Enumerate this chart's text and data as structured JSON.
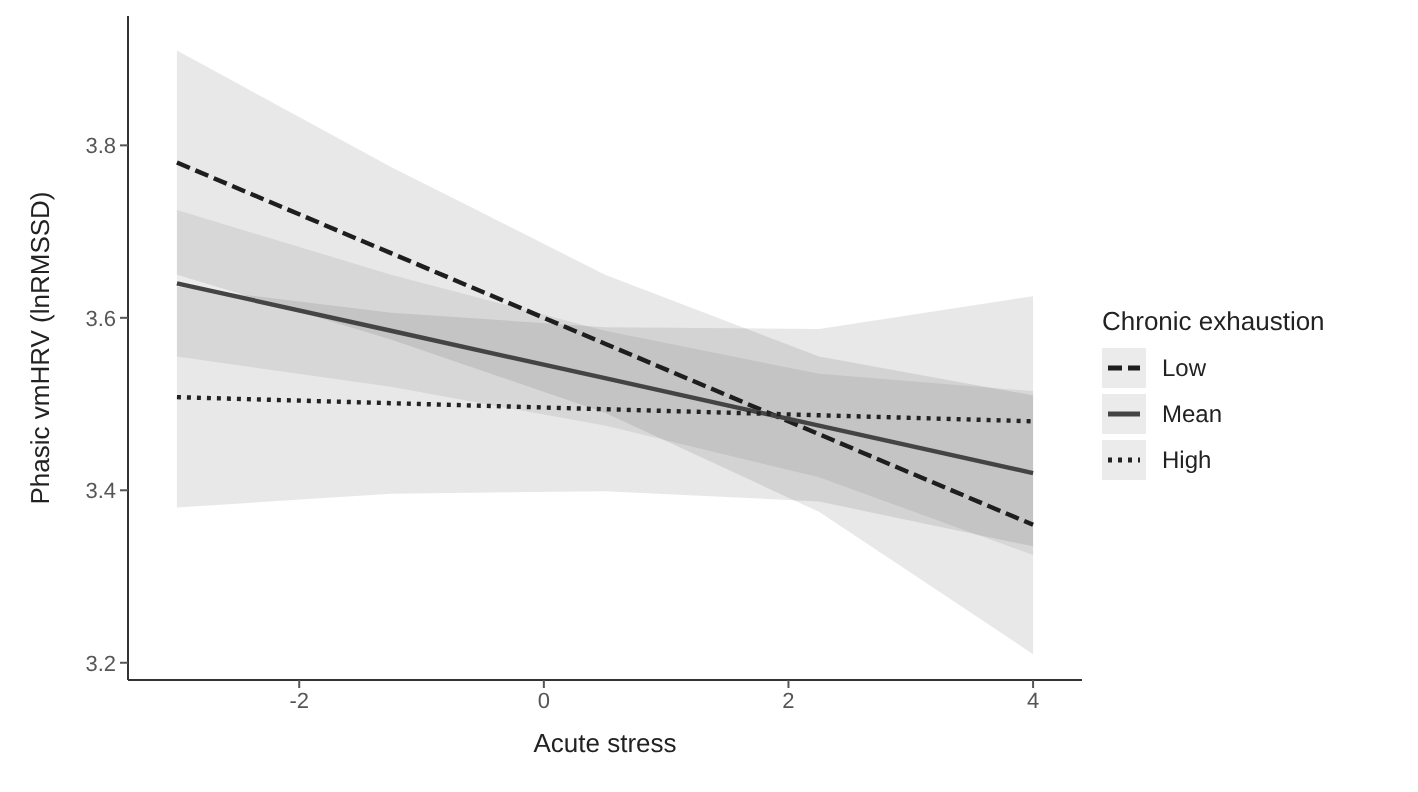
{
  "chart_data": {
    "type": "line",
    "xlabel": "Acute stress",
    "ylabel": "Phasic vmHRV (lnRMSSD)",
    "legend_title": "Chronic exhaustion",
    "xlim": [
      -3.4,
      4.4
    ],
    "xticks": [
      -2,
      0,
      2,
      4
    ],
    "ylim": [
      3.18,
      3.95
    ],
    "yticks": [
      3.2,
      3.4,
      3.6,
      3.8
    ],
    "grid": false,
    "legend": "right",
    "marker": "none",
    "x": [
      -3,
      -1.25,
      0.5,
      2.25,
      4
    ],
    "series": [
      {
        "name": "Low",
        "color": "#1e1e1e",
        "line_style": "dashed",
        "values": [
          3.78,
          3.675,
          3.57,
          3.465,
          3.36
        ],
        "lower": [
          3.65,
          3.575,
          3.49,
          3.375,
          3.21
        ],
        "upper": [
          3.91,
          3.775,
          3.65,
          3.555,
          3.51
        ]
      },
      {
        "name": "Mean",
        "color": "#444444",
        "line_style": "solid",
        "values": [
          3.64,
          3.585,
          3.53,
          3.475,
          3.42
        ],
        "lower": [
          3.555,
          3.52,
          3.475,
          3.415,
          3.325
        ],
        "upper": [
          3.725,
          3.65,
          3.585,
          3.535,
          3.515
        ]
      },
      {
        "name": "High",
        "color": "#222222",
        "line_style": "dotted",
        "values": [
          3.508,
          3.501,
          3.494,
          3.487,
          3.48
        ],
        "lower": [
          3.38,
          3.396,
          3.399,
          3.387,
          3.335
        ],
        "upper": [
          3.636,
          3.606,
          3.589,
          3.587,
          3.625
        ]
      }
    ]
  }
}
